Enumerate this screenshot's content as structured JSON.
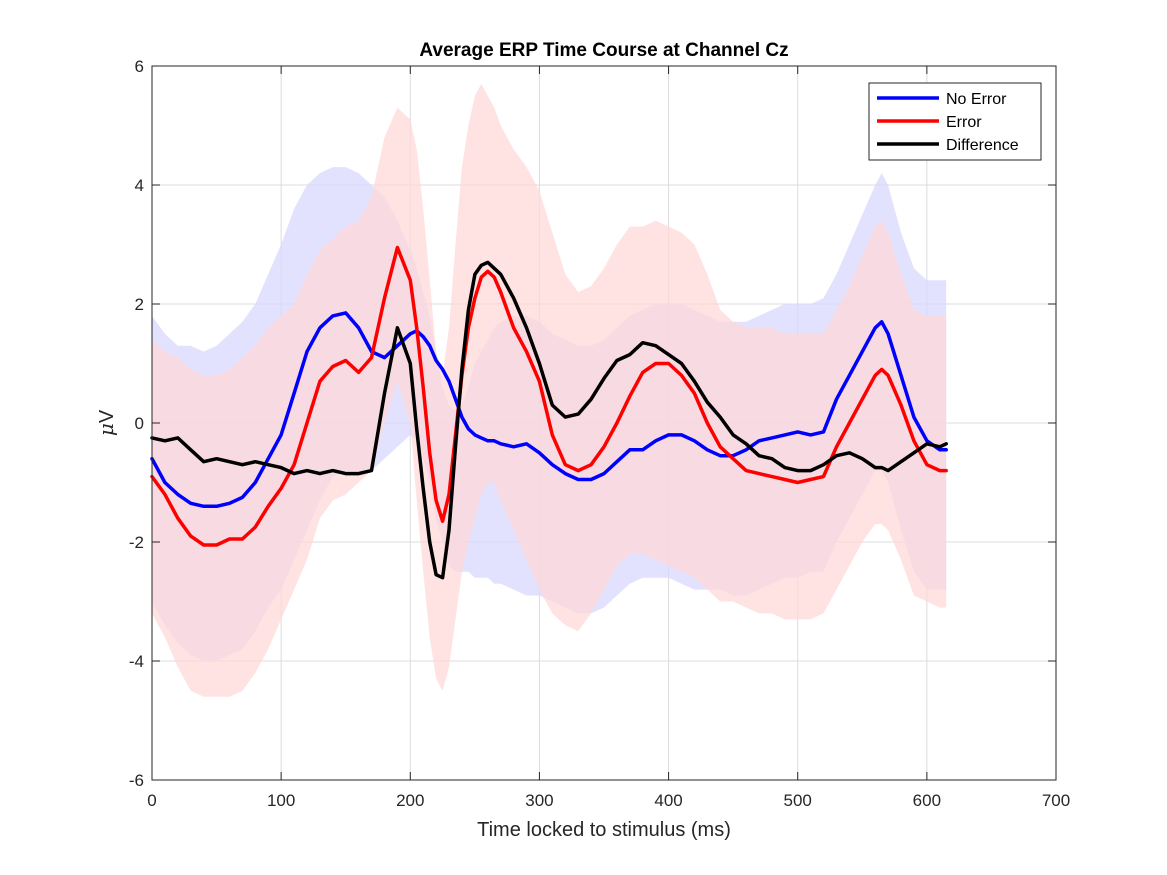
{
  "chart_data": {
    "type": "line",
    "title": "Average ERP Time Course at Channel Cz",
    "xlabel": "Time locked to stimulus (ms)",
    "ylabel_prefix": "μ",
    "ylabel_unit": "V",
    "xlim": [
      0,
      700
    ],
    "ylim": [
      -6,
      6
    ],
    "xticks": [
      0,
      100,
      200,
      300,
      400,
      500,
      600,
      700
    ],
    "yticks": [
      -6,
      -4,
      -2,
      0,
      2,
      4,
      6
    ],
    "grid": true,
    "legend_position": "top-right",
    "x": [
      0,
      10,
      20,
      30,
      40,
      50,
      60,
      70,
      80,
      90,
      100,
      110,
      120,
      130,
      140,
      150,
      160,
      170,
      180,
      190,
      200,
      205,
      210,
      215,
      220,
      225,
      230,
      235,
      240,
      245,
      250,
      255,
      260,
      265,
      270,
      280,
      290,
      300,
      310,
      320,
      330,
      340,
      350,
      360,
      370,
      380,
      390,
      400,
      410,
      420,
      430,
      440,
      450,
      460,
      470,
      480,
      490,
      500,
      510,
      520,
      530,
      540,
      550,
      560,
      565,
      570,
      580,
      590,
      600,
      610,
      615
    ],
    "series": [
      {
        "name": "No Error",
        "color": "#0000FF",
        "shade": "#D8D8FF",
        "values": [
          -0.6,
          -1.0,
          -1.2,
          -1.35,
          -1.4,
          -1.4,
          -1.35,
          -1.25,
          -1.0,
          -0.6,
          -0.2,
          0.5,
          1.2,
          1.6,
          1.8,
          1.85,
          1.6,
          1.2,
          1.1,
          1.3,
          1.5,
          1.55,
          1.45,
          1.3,
          1.05,
          0.9,
          0.7,
          0.4,
          0.1,
          -0.1,
          -0.2,
          -0.25,
          -0.3,
          -0.3,
          -0.35,
          -0.4,
          -0.35,
          -0.5,
          -0.7,
          -0.85,
          -0.95,
          -0.95,
          -0.85,
          -0.65,
          -0.45,
          -0.45,
          -0.3,
          -0.2,
          -0.2,
          -0.3,
          -0.45,
          -0.55,
          -0.55,
          -0.45,
          -0.3,
          -0.25,
          -0.2,
          -0.15,
          -0.2,
          -0.15,
          0.4,
          0.8,
          1.2,
          1.6,
          1.7,
          1.5,
          0.8,
          0.1,
          -0.3,
          -0.45,
          -0.45
        ],
        "ci_upper": [
          1.8,
          1.5,
          1.3,
          1.3,
          1.2,
          1.3,
          1.5,
          1.7,
          2.0,
          2.5,
          3.0,
          3.6,
          4.0,
          4.2,
          4.3,
          4.3,
          4.2,
          4.0,
          3.8,
          3.4,
          2.9,
          2.6,
          2.2,
          1.8,
          1.2,
          0.6,
          0.3,
          0.2,
          0.3,
          0.6,
          1.0,
          1.2,
          1.4,
          1.6,
          1.7,
          1.8,
          1.8,
          1.7,
          1.5,
          1.4,
          1.3,
          1.3,
          1.4,
          1.6,
          1.8,
          1.9,
          2.0,
          2.0,
          2.0,
          1.9,
          1.8,
          1.7,
          1.7,
          1.7,
          1.8,
          1.9,
          2.0,
          2.0,
          2.0,
          2.1,
          2.5,
          3.0,
          3.5,
          4.0,
          4.2,
          4.0,
          3.2,
          2.6,
          2.4,
          2.4,
          2.4
        ],
        "ci_lower": [
          -3.0,
          -3.4,
          -3.7,
          -3.9,
          -4.0,
          -4.0,
          -3.9,
          -3.8,
          -3.5,
          -3.1,
          -2.8,
          -2.3,
          -1.8,
          -1.3,
          -0.9,
          -0.8,
          -0.9,
          -0.8,
          -0.6,
          -0.4,
          -0.2,
          -0.3,
          -0.6,
          -1.0,
          -1.6,
          -2.0,
          -2.4,
          -2.5,
          -2.5,
          -2.5,
          -2.6,
          -2.6,
          -2.6,
          -2.7,
          -2.7,
          -2.8,
          -2.9,
          -2.9,
          -3.0,
          -3.1,
          -3.2,
          -3.2,
          -3.1,
          -2.9,
          -2.7,
          -2.6,
          -2.6,
          -2.6,
          -2.7,
          -2.8,
          -2.8,
          -2.8,
          -2.9,
          -2.9,
          -2.8,
          -2.7,
          -2.6,
          -2.6,
          -2.5,
          -2.5,
          -2.0,
          -1.6,
          -1.2,
          -0.8,
          -0.8,
          -1.0,
          -1.8,
          -2.5,
          -2.8,
          -2.8,
          -2.8
        ]
      },
      {
        "name": "Error",
        "color": "#FF0000",
        "shade": "#FFD8D8",
        "values": [
          -0.9,
          -1.2,
          -1.6,
          -1.9,
          -2.05,
          -2.05,
          -1.95,
          -1.95,
          -1.75,
          -1.4,
          -1.1,
          -0.7,
          0.0,
          0.7,
          0.95,
          1.05,
          0.85,
          1.1,
          2.1,
          2.95,
          2.4,
          1.6,
          0.6,
          -0.5,
          -1.3,
          -1.65,
          -1.2,
          -0.2,
          0.8,
          1.6,
          2.1,
          2.45,
          2.55,
          2.45,
          2.2,
          1.6,
          1.2,
          0.7,
          -0.2,
          -0.7,
          -0.8,
          -0.7,
          -0.4,
          0.0,
          0.45,
          0.85,
          1.0,
          1.0,
          0.8,
          0.5,
          0.0,
          -0.4,
          -0.6,
          -0.8,
          -0.85,
          -0.9,
          -0.95,
          -1.0,
          -0.95,
          -0.9,
          -0.4,
          0.0,
          0.4,
          0.8,
          0.9,
          0.8,
          0.3,
          -0.3,
          -0.7,
          -0.8,
          -0.8
        ],
        "ci_upper": [
          1.4,
          1.2,
          1.1,
          0.9,
          0.8,
          0.8,
          0.9,
          1.1,
          1.3,
          1.6,
          1.8,
          2.0,
          2.5,
          2.9,
          3.1,
          3.3,
          3.4,
          3.8,
          4.8,
          5.3,
          5.1,
          4.6,
          3.6,
          2.4,
          1.2,
          0.8,
          1.6,
          3.0,
          4.3,
          5.0,
          5.5,
          5.7,
          5.5,
          5.3,
          5.0,
          4.6,
          4.3,
          3.9,
          3.2,
          2.5,
          2.2,
          2.3,
          2.6,
          3.0,
          3.3,
          3.3,
          3.4,
          3.3,
          3.2,
          3.0,
          2.5,
          1.9,
          1.7,
          1.6,
          1.6,
          1.6,
          1.5,
          1.5,
          1.5,
          1.5,
          1.9,
          2.3,
          2.8,
          3.3,
          3.4,
          3.2,
          2.5,
          1.9,
          1.8,
          1.8,
          1.8
        ],
        "ci_lower": [
          -3.2,
          -3.6,
          -4.1,
          -4.5,
          -4.6,
          -4.6,
          -4.6,
          -4.5,
          -4.2,
          -3.8,
          -3.3,
          -2.8,
          -2.3,
          -1.6,
          -1.3,
          -1.2,
          -1.0,
          -0.8,
          0.0,
          0.7,
          0.0,
          -1.3,
          -2.5,
          -3.6,
          -4.3,
          -4.5,
          -4.1,
          -3.3,
          -2.5,
          -2.0,
          -1.6,
          -1.2,
          -1.0,
          -1.0,
          -1.3,
          -1.8,
          -2.3,
          -2.8,
          -3.2,
          -3.4,
          -3.5,
          -3.2,
          -2.8,
          -2.4,
          -2.2,
          -2.2,
          -2.3,
          -2.4,
          -2.5,
          -2.6,
          -2.8,
          -3.0,
          -3.0,
          -3.1,
          -3.2,
          -3.2,
          -3.3,
          -3.3,
          -3.3,
          -3.2,
          -2.8,
          -2.4,
          -2.0,
          -1.7,
          -1.7,
          -1.8,
          -2.3,
          -2.9,
          -3.0,
          -3.1,
          -3.1
        ]
      },
      {
        "name": "Difference",
        "color": "#000000",
        "values": [
          -0.25,
          -0.3,
          -0.25,
          -0.45,
          -0.65,
          -0.6,
          -0.65,
          -0.7,
          -0.65,
          -0.7,
          -0.75,
          -0.85,
          -0.8,
          -0.85,
          -0.8,
          -0.85,
          -0.85,
          -0.8,
          0.5,
          1.6,
          1.0,
          -0.1,
          -1.1,
          -2.0,
          -2.55,
          -2.6,
          -1.8,
          -0.4,
          0.9,
          1.9,
          2.5,
          2.65,
          2.7,
          2.6,
          2.5,
          2.1,
          1.6,
          1.0,
          0.3,
          0.1,
          0.15,
          0.4,
          0.75,
          1.05,
          1.15,
          1.35,
          1.3,
          1.15,
          1.0,
          0.7,
          0.35,
          0.1,
          -0.2,
          -0.35,
          -0.55,
          -0.6,
          -0.75,
          -0.8,
          -0.8,
          -0.7,
          -0.55,
          -0.5,
          -0.6,
          -0.75,
          -0.75,
          -0.8,
          -0.65,
          -0.5,
          -0.35,
          -0.4,
          -0.35
        ]
      }
    ]
  }
}
